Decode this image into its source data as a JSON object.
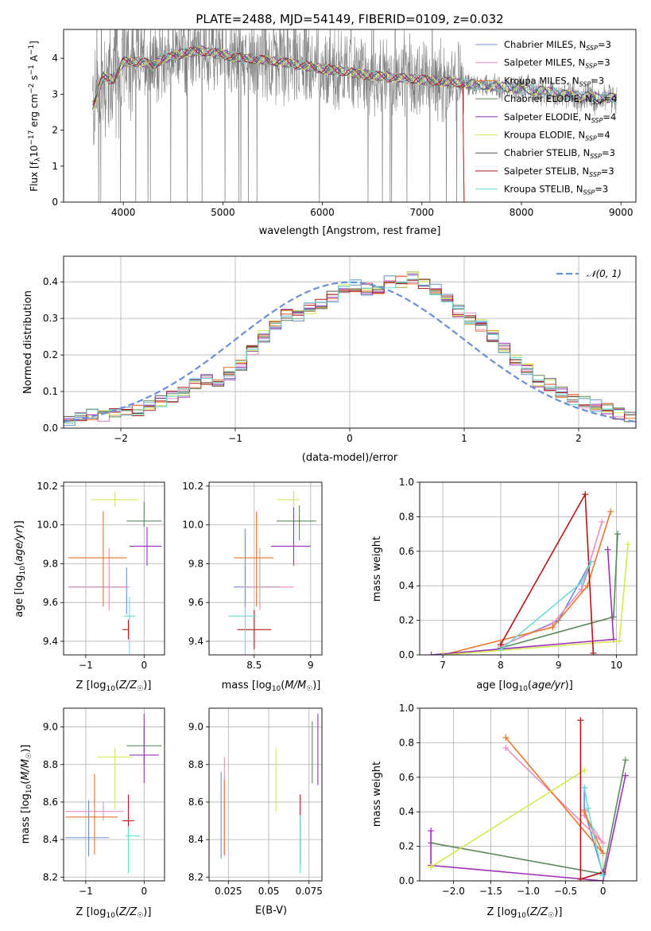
{
  "figure": {
    "title": "PLATE=2488, MJD=54149, FIBERID=0109, z=0.032"
  },
  "chart_data": [
    {
      "id": "spectrum",
      "type": "line",
      "xlabel": "wavelength [Angstrom, rest frame]",
      "ylabel": "Flux [f_λ 10⁻¹⁷ erg cm⁻² s⁻¹ A⁻¹]",
      "xlim": [
        3400,
        9150
      ],
      "ylim": [
        0,
        4.8
      ],
      "xticks": [
        4000,
        5000,
        6000,
        7000,
        8000,
        9000
      ],
      "yticks": [
        0,
        1,
        2,
        3,
        4
      ],
      "grid": false,
      "legend_position": "upper-right",
      "data_color": "#808080",
      "continuum": {
        "x": [
          3700,
          3800,
          3900,
          4000,
          4100,
          4200,
          4300,
          4400,
          4500,
          4600,
          4800,
          5000,
          5200,
          5400,
          5600,
          5800,
          6000,
          6200,
          6400,
          6600,
          6800,
          7000,
          7200,
          7420,
          7600,
          7800,
          8000,
          8200,
          8400,
          8600,
          8800,
          8950
        ],
        "y": [
          2.7,
          3.5,
          3.4,
          3.9,
          3.9,
          3.9,
          3.8,
          4.0,
          4.05,
          4.15,
          4.2,
          4.1,
          4.0,
          3.95,
          3.9,
          3.8,
          3.7,
          3.65,
          3.55,
          3.5,
          3.45,
          3.4,
          3.35,
          3.3,
          3.25,
          3.2,
          3.15,
          3.1,
          3.0,
          2.95,
          2.9,
          2.9
        ]
      },
      "series": [
        {
          "name": "Chabrier MILES, N_SSP=3",
          "color": "#6a8fd4"
        },
        {
          "name": "Salpeter MILES, N_SSP=3",
          "color": "#e88fc0"
        },
        {
          "name": "Kroupa MILES, N_SSP=3",
          "color": "#e8762c"
        },
        {
          "name": "Chabrier ELODIE, N_SSP=4",
          "color": "#5a8a5a"
        },
        {
          "name": "Salpeter ELODIE, N_SSP=4",
          "color": "#9b30b8"
        },
        {
          "name": "Kroupa ELODIE, N_SSP=4",
          "color": "#d4e850"
        },
        {
          "name": "Chabrier STELIB, N_SSP=3",
          "color": "#555555"
        },
        {
          "name": "Salpeter STELIB, N_SSP=3",
          "color": "#b01818"
        },
        {
          "name": "Kroupa STELIB, N_SSP=3",
          "color": "#6fd8d8"
        }
      ]
    },
    {
      "id": "residuals",
      "type": "histogram",
      "xlabel": "(data-model)/error",
      "ylabel": "Normed distribution",
      "xlim": [
        -2.5,
        2.5
      ],
      "ylim": [
        0,
        0.47
      ],
      "xticks": [
        -2,
        -1,
        0,
        1,
        2
      ],
      "yticks": [
        0.0,
        0.1,
        0.2,
        0.3,
        0.4
      ],
      "grid": true,
      "legend_position": "upper-right",
      "reference_curve": {
        "name": "𝒩(0, 1)",
        "color": "#6a8fd4"
      },
      "bin_edges_start": -2.5,
      "bin_width": 0.1,
      "base_values": [
        0.02,
        0.03,
        0.035,
        0.035,
        0.04,
        0.045,
        0.05,
        0.06,
        0.075,
        0.085,
        0.095,
        0.12,
        0.13,
        0.13,
        0.15,
        0.17,
        0.21,
        0.25,
        0.28,
        0.31,
        0.31,
        0.33,
        0.34,
        0.36,
        0.38,
        0.39,
        0.38,
        0.38,
        0.4,
        0.4,
        0.41,
        0.39,
        0.38,
        0.35,
        0.32,
        0.3,
        0.28,
        0.25,
        0.22,
        0.19,
        0.16,
        0.13,
        0.12,
        0.1,
        0.08,
        0.07,
        0.06,
        0.05,
        0.04,
        0.035
      ]
    },
    {
      "id": "age-vs-Z",
      "type": "errorbar",
      "xlabel": "Z [log₁₀(Z/Z☉)]",
      "ylabel": "age [log₁₀(age/yr)]",
      "xlim": [
        -1.38,
        0.35
      ],
      "ylim": [
        9.33,
        10.22
      ],
      "xticks": [
        -1,
        0
      ],
      "yticks": [
        9.4,
        9.6,
        9.8,
        10.0,
        10.2
      ],
      "grid": true,
      "points": [
        {
          "c": 0,
          "x": -0.3,
          "y": 9.68,
          "xe": [
            1.0,
            0.0
          ],
          "ye": [
            0.14,
            0.1
          ]
        },
        {
          "c": 1,
          "x": -0.6,
          "y": 9.68,
          "xe": [
            0.7,
            0.35
          ],
          "ye": [
            0.12,
            0.2
          ]
        },
        {
          "c": 2,
          "x": -0.7,
          "y": 9.83,
          "xe": [
            0.6,
            0.4
          ],
          "ye": [
            0.25,
            0.24
          ]
        },
        {
          "c": 3,
          "x": 0.0,
          "y": 10.02,
          "xe": [
            0.3,
            0.3
          ],
          "ye": [
            0.03,
            0.1
          ]
        },
        {
          "c": 4,
          "x": 0.05,
          "y": 9.89,
          "xe": [
            0.3,
            0.25
          ],
          "ye": [
            0.1,
            0.1
          ]
        },
        {
          "c": 5,
          "x": -0.5,
          "y": 10.13,
          "xe": [
            0.4,
            0.4
          ],
          "ye": [
            0.04,
            0.04
          ]
        },
        {
          "c": 7,
          "x": -0.27,
          "y": 9.46,
          "xe": [
            0.1,
            0.0
          ],
          "ye": [
            0.05,
            0.05
          ]
        },
        {
          "c": 8,
          "x": -0.25,
          "y": 9.53,
          "xe": [
            0.1,
            0.1
          ],
          "ye": [
            0.2,
            0.1
          ]
        }
      ]
    },
    {
      "id": "age-vs-mass",
      "type": "errorbar",
      "xlabel": "mass [log₁₀(M/M☉)]",
      "ylabel": "",
      "xlim": [
        8.1,
        9.1
      ],
      "ylim": [
        9.33,
        10.22
      ],
      "xticks": [
        8.5,
        9.0
      ],
      "yticks": [
        9.4,
        9.6,
        9.8,
        10.0,
        10.2
      ],
      "grid": true,
      "points": [
        {
          "c": 0,
          "x": 8.42,
          "y": 9.68,
          "xe": [
            0.1,
            0.3
          ],
          "ye": [
            0.12,
            0.3
          ]
        },
        {
          "c": 1,
          "x": 8.55,
          "y": 9.68,
          "xe": [
            0.15,
            0.3
          ],
          "ye": [
            0.12,
            0.2
          ]
        },
        {
          "c": 2,
          "x": 8.52,
          "y": 9.83,
          "xe": [
            0.2,
            0.15
          ],
          "ye": [
            0.25,
            0.24
          ]
        },
        {
          "c": 3,
          "x": 8.9,
          "y": 10.02,
          "xe": [
            0.2,
            0.15
          ],
          "ye": [
            0.1,
            0.08
          ]
        },
        {
          "c": 4,
          "x": 8.85,
          "y": 9.89,
          "xe": [
            0.2,
            0.15
          ],
          "ye": [
            0.1,
            0.28
          ]
        },
        {
          "c": 5,
          "x": 8.85,
          "y": 10.13,
          "xe": [
            0.15,
            0.05
          ],
          "ye": [
            0.04,
            0.04
          ]
        },
        {
          "c": 7,
          "x": 8.5,
          "y": 9.46,
          "xe": [
            0.15,
            0.15
          ],
          "ye": [
            0.1,
            0.1
          ]
        },
        {
          "c": 8,
          "x": 8.42,
          "y": 9.53,
          "xe": [
            0.15,
            0.1
          ],
          "ye": [
            0.25,
            0.05
          ]
        }
      ]
    },
    {
      "id": "weight-vs-age",
      "type": "line",
      "xlabel": "age [log₁₀(age/yr)]",
      "ylabel": "mass weight",
      "xlim": [
        6.6,
        10.35
      ],
      "ylim": [
        0,
        1.0
      ],
      "xticks": [
        7,
        8,
        9,
        10
      ],
      "yticks": [
        0.0,
        0.2,
        0.4,
        0.6,
        0.8,
        1.0
      ],
      "grid": true,
      "series": [
        {
          "c": 0,
          "x": [
            9.4,
            9.56,
            9.0,
            8.0
          ],
          "y": [
            0.38,
            0.54,
            0.2,
            0.05
          ]
        },
        {
          "c": 1,
          "x": [
            9.75,
            9.4,
            8.9,
            8.0
          ],
          "y": [
            0.77,
            0.38,
            0.18,
            0.05
          ]
        },
        {
          "c": 2,
          "x": [
            9.9,
            9.5,
            8.9,
            7.0
          ],
          "y": [
            0.83,
            0.4,
            0.16,
            0.0
          ]
        },
        {
          "c": 3,
          "x": [
            10.02,
            9.95,
            8.0
          ],
          "y": [
            0.7,
            0.22,
            0.04
          ]
        },
        {
          "c": 4,
          "x": [
            9.85,
            9.95,
            6.8
          ],
          "y": [
            0.61,
            0.09,
            0.0
          ]
        },
        {
          "c": 5,
          "x": [
            10.2,
            10.05,
            7.0
          ],
          "y": [
            0.64,
            0.08,
            0.0
          ]
        },
        {
          "c": 7,
          "x": [
            9.6,
            9.46,
            8.0
          ],
          "y": [
            0.01,
            0.93,
            0.06
          ]
        },
        {
          "c": 8,
          "x": [
            9.56,
            9.4,
            8.0
          ],
          "y": [
            0.54,
            0.42,
            0.03
          ]
        }
      ]
    },
    {
      "id": "mass-vs-Z",
      "type": "errorbar",
      "xlabel": "Z [log₁₀(Z/Z☉)]",
      "ylabel": "mass [log₁₀(M/M☉)]",
      "xlim": [
        -1.38,
        0.35
      ],
      "ylim": [
        8.18,
        9.1
      ],
      "xticks": [
        -1,
        0
      ],
      "yticks": [
        8.2,
        8.4,
        8.6,
        8.8,
        9.0
      ],
      "grid": true,
      "points": [
        {
          "c": 0,
          "x": -0.95,
          "y": 8.41,
          "xe": [
            0.4,
            0.35
          ],
          "ye": [
            0.1,
            0.2
          ]
        },
        {
          "c": 1,
          "x": -0.7,
          "y": 8.55,
          "xe": [
            0.65,
            0.35
          ],
          "ye": [
            0.05,
            0.05
          ]
        },
        {
          "c": 2,
          "x": -0.85,
          "y": 8.52,
          "xe": [
            0.5,
            0.4
          ],
          "ye": [
            0.2,
            0.23
          ]
        },
        {
          "c": 3,
          "x": 0.0,
          "y": 8.9,
          "xe": [
            0.3,
            0.3
          ],
          "ye": [
            0.1,
            0.1
          ]
        },
        {
          "c": 4,
          "x": 0.0,
          "y": 8.85,
          "xe": [
            0.25,
            0.25
          ],
          "ye": [
            0.15,
            0.22
          ]
        },
        {
          "c": 5,
          "x": -0.5,
          "y": 8.84,
          "xe": [
            0.3,
            0.3
          ],
          "ye": [
            0.28,
            0.05
          ]
        },
        {
          "c": 7,
          "x": -0.27,
          "y": 8.5,
          "xe": [
            0.1,
            0.1
          ],
          "ye": [
            0.1,
            0.14
          ]
        },
        {
          "c": 8,
          "x": -0.27,
          "y": 8.42,
          "xe": [
            0.05,
            0.2
          ],
          "ye": [
            0.2,
            0.05
          ]
        }
      ]
    },
    {
      "id": "mass-vs-EBV",
      "type": "errorbar",
      "xlabel": "E(B-V)",
      "ylabel": "",
      "xlim": [
        0.013,
        0.083
      ],
      "ylim": [
        8.18,
        9.1
      ],
      "xticks": [
        0.025,
        0.05,
        0.075
      ],
      "yticks": [
        8.2,
        8.4,
        8.6,
        8.8,
        9.0
      ],
      "grid": true,
      "points": [
        {
          "c": 0,
          "x": 0.0205,
          "y": 8.53,
          "xe": [
            0,
            0
          ],
          "ye": [
            0.23,
            0.23
          ]
        },
        {
          "c": 1,
          "x": 0.0225,
          "y": 8.56,
          "xe": [
            0,
            0
          ],
          "ye": [
            0.25,
            0.28
          ]
        },
        {
          "c": 2,
          "x": 0.0225,
          "y": 8.52,
          "xe": [
            0,
            0
          ],
          "ye": [
            0.2,
            0.2
          ]
        },
        {
          "c": 5,
          "x": 0.0545,
          "y": 8.72,
          "xe": [
            0,
            0
          ],
          "ye": [
            0.17,
            0.17
          ]
        },
        {
          "c": 7,
          "x": 0.0695,
          "y": 8.47,
          "xe": [
            0,
            0
          ],
          "ye": [
            0.2,
            0.17
          ]
        },
        {
          "c": 8,
          "x": 0.0695,
          "y": 8.4,
          "xe": [
            0,
            0
          ],
          "ye": [
            0.18,
            0.13
          ]
        },
        {
          "c": 3,
          "x": 0.077,
          "y": 8.83,
          "xe": [
            0,
            0
          ],
          "ye": [
            0.13,
            0.2
          ]
        },
        {
          "c": 4,
          "x": 0.0805,
          "y": 8.88,
          "xe": [
            0,
            0
          ],
          "ye": [
            0.19,
            0.19
          ]
        }
      ]
    },
    {
      "id": "weight-vs-Z",
      "type": "line",
      "xlabel": "Z [log₁₀(Z/Z☉)]",
      "ylabel": "mass weight",
      "xlim": [
        -2.45,
        0.45
      ],
      "ylim": [
        0,
        1.0
      ],
      "xticks": [
        -2.0,
        -1.5,
        -1.0,
        -0.5,
        0.0
      ],
      "yticks": [
        0.0,
        0.2,
        0.4,
        0.6,
        0.8,
        1.0
      ],
      "grid": true,
      "series": [
        {
          "c": 0,
          "x": [
            -0.25,
            -0.25,
            0.0
          ],
          "y": [
            0.54,
            0.41,
            0.04
          ]
        },
        {
          "c": 1,
          "x": [
            -1.3,
            0.0,
            -0.25
          ],
          "y": [
            0.77,
            0.22,
            0.38
          ]
        },
        {
          "c": 2,
          "x": [
            -1.3,
            0.0,
            -0.25
          ],
          "y": [
            0.83,
            0.16,
            0.4
          ]
        },
        {
          "c": 3,
          "x": [
            0.3,
            0.0,
            -2.3
          ],
          "y": [
            0.7,
            0.04,
            0.22
          ]
        },
        {
          "c": 4,
          "x": [
            0.3,
            0.0,
            -2.3,
            -2.3
          ],
          "y": [
            0.61,
            0.0,
            0.09,
            0.29
          ]
        },
        {
          "c": 5,
          "x": [
            -0.25,
            -2.3,
            -2.3
          ],
          "y": [
            0.64,
            0.08,
            0.08
          ]
        },
        {
          "c": 7,
          "x": [
            -0.3,
            -0.3,
            0.0
          ],
          "y": [
            0.93,
            0.01,
            0.05
          ]
        },
        {
          "c": 8,
          "x": [
            -0.25,
            -0.2,
            0.0
          ],
          "y": [
            0.54,
            0.42,
            0.03
          ]
        }
      ]
    }
  ]
}
